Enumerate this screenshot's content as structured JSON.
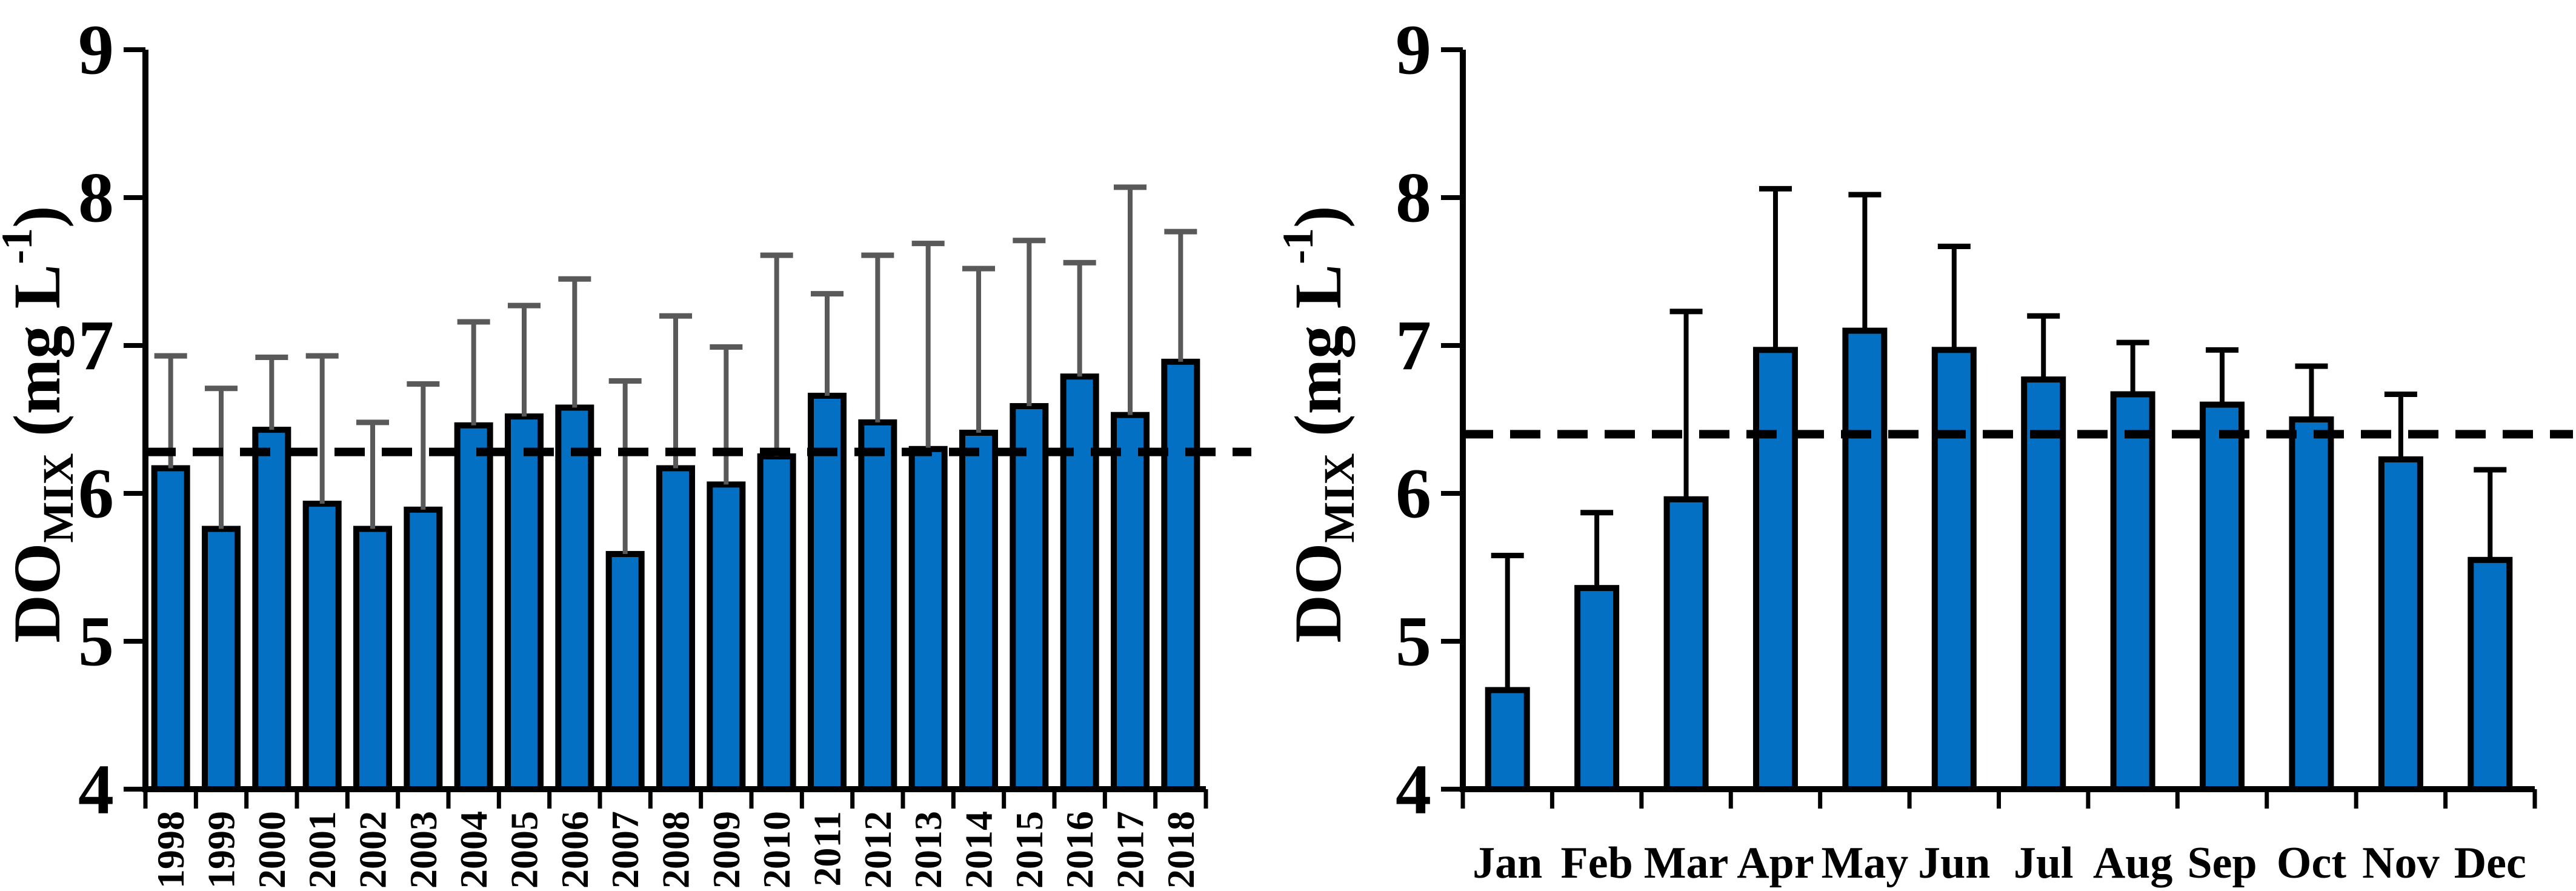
{
  "figure": {
    "background_color": "#ffffff",
    "description_left_panel": "annual mean mixed-layer dissolved oxygen with upper error bars",
    "description_right_panel": "monthly mean mixed-layer dissolved oxygen with upper error bars"
  },
  "chart_data": [
    {
      "type": "bar",
      "panel": "annual",
      "ylabel": "DOMIX (mg L-1)",
      "ylabel_parts": [
        {
          "text": "DO",
          "script": "normal"
        },
        {
          "text": "MIX",
          "script": "sub"
        },
        {
          "text": " (mg L",
          "script": "normal"
        },
        {
          "text": "-1",
          "script": "sup"
        },
        {
          "text": ")",
          "script": "normal"
        }
      ],
      "ylim": [
        4,
        9
      ],
      "yticks": [
        4,
        5,
        6,
        7,
        8,
        9
      ],
      "grid": false,
      "legend": "none",
      "categories": [
        "1998",
        "1999",
        "2000",
        "2001",
        "2002",
        "2003",
        "2004",
        "2005",
        "2006",
        "2007",
        "2008",
        "2009",
        "2010",
        "2011",
        "2012",
        "2013",
        "2014",
        "2015",
        "2016",
        "2017",
        "2018"
      ],
      "values": [
        6.17,
        5.76,
        6.43,
        5.93,
        5.76,
        5.89,
        6.46,
        6.52,
        6.58,
        5.59,
        6.17,
        6.06,
        6.25,
        6.66,
        6.48,
        6.3,
        6.41,
        6.59,
        6.79,
        6.53,
        6.89
      ],
      "error_bar_tops": [
        6.93,
        6.71,
        6.92,
        6.93,
        6.48,
        6.74,
        7.16,
        7.27,
        7.45,
        6.76,
        7.2,
        6.99,
        7.61,
        7.35,
        7.61,
        7.69,
        7.52,
        7.71,
        7.56,
        8.07,
        7.77
      ],
      "reference_line": 6.28,
      "bar_color": "#0470C4",
      "bar_border_color": "#000000",
      "error_bar_color": "#595959",
      "reference_line_color": "#000000",
      "category_label_orientation": "vertical"
    },
    {
      "type": "bar",
      "panel": "monthly",
      "ylabel": "DOMIX (mg L-1)",
      "ylabel_parts": [
        {
          "text": "DO",
          "script": "normal"
        },
        {
          "text": "MIX",
          "script": "sub"
        },
        {
          "text": " (mg L",
          "script": "normal"
        },
        {
          "text": "-1",
          "script": "sup"
        },
        {
          "text": ")",
          "script": "normal"
        }
      ],
      "ylim": [
        4,
        9
      ],
      "yticks": [
        4,
        5,
        6,
        7,
        8,
        9
      ],
      "grid": false,
      "legend": "none",
      "categories": [
        "Jan",
        "Feb",
        "Mar",
        "Apr",
        "May",
        "Jun",
        "Jul",
        "Aug",
        "Sep",
        "Oct",
        "Nov",
        "Dec"
      ],
      "values": [
        4.67,
        5.36,
        5.96,
        6.97,
        7.1,
        6.97,
        6.77,
        6.67,
        6.6,
        6.5,
        6.23,
        5.55
      ],
      "error_bar_tops": [
        5.58,
        5.87,
        7.23,
        8.06,
        8.02,
        7.67,
        7.2,
        7.02,
        6.97,
        6.86,
        6.67,
        6.16
      ],
      "reference_line": 6.4,
      "bar_color": "#0470C4",
      "bar_border_color": "#000000",
      "error_bar_color": "#000000",
      "reference_line_color": "#000000",
      "category_label_orientation": "horizontal"
    }
  ]
}
